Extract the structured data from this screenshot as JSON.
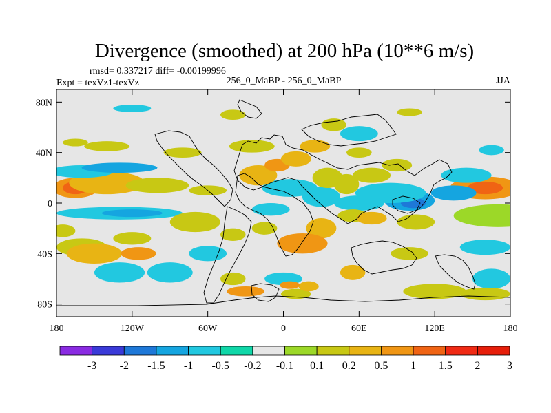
{
  "chart_data": {
    "type": "heatmap",
    "title": "Divergence (smoothed) at 200 hPa (10**6 m/s)",
    "stats_line": "rmsd= 0.337217 diff= -0.00199996",
    "experiment_line": "Expt = texVz1-texVz",
    "case_label": "256_0_MaBP - 256_0_MaBP",
    "season": "JJA",
    "x_axis": {
      "range": [
        -180,
        180
      ],
      "ticks": [
        -180,
        -120,
        -60,
        0,
        60,
        120,
        180
      ],
      "tick_labels": [
        "180",
        "120W",
        "60W",
        "0",
        "60E",
        "120E",
        "180"
      ]
    },
    "y_axis": {
      "range": [
        -90,
        90
      ],
      "ticks": [
        80,
        40,
        0,
        -40,
        -80
      ],
      "tick_labels": [
        "80N",
        "40N",
        "0",
        "40S",
        "80S"
      ]
    },
    "colorbar": {
      "levels": [
        "-3",
        "-2",
        "-1.5",
        "-1",
        "-0.5",
        "-0.2",
        "-0.1",
        "0.1",
        "0.2",
        "0.5",
        "1",
        "1.5",
        "2",
        "3"
      ],
      "colors": [
        "#8a2be2",
        "#3a3ad8",
        "#1e78d8",
        "#15a5e0",
        "#22c8e0",
        "#10d7a8",
        "#e6e6e6",
        "#9cd828",
        "#c8c814",
        "#e8b414",
        "#f09614",
        "#f06414",
        "#f02a14",
        "#e61e0a"
      ]
    },
    "background_value_color": "#e6e6e6",
    "features": [
      {
        "lon": 160,
        "lat": 12,
        "slon": 28,
        "slat": 9,
        "class": 10
      },
      {
        "lon": 160,
        "lat": 12,
        "slon": 14,
        "slat": 5,
        "class": 11
      },
      {
        "lon": -165,
        "lat": 12,
        "slon": 18,
        "slat": 8,
        "class": 10
      },
      {
        "lon": -165,
        "lat": 12,
        "slon": 10,
        "slat": 5,
        "class": 11
      },
      {
        "lon": -140,
        "lat": 16,
        "slon": 30,
        "slat": 9,
        "class": 9
      },
      {
        "lon": -100,
        "lat": 14,
        "slon": 25,
        "slat": 6,
        "class": 8
      },
      {
        "lon": -60,
        "lat": 10,
        "slon": 15,
        "slat": 4,
        "class": 8
      },
      {
        "lon": 170,
        "lat": -10,
        "slon": 35,
        "slat": 9,
        "class": 7
      },
      {
        "lon": -130,
        "lat": -8,
        "slon": 50,
        "slat": 5,
        "class": 4
      },
      {
        "lon": -120,
        "lat": -8,
        "slon": 24,
        "slat": 3,
        "class": 3
      },
      {
        "lon": -160,
        "lat": 25,
        "slon": 25,
        "slat": 5,
        "class": 4
      },
      {
        "lon": -130,
        "lat": 28,
        "slon": 30,
        "slat": 4,
        "class": 3
      },
      {
        "lon": 145,
        "lat": 22,
        "slon": 20,
        "slat": 6,
        "class": 4
      },
      {
        "lon": 135,
        "lat": 8,
        "slon": 18,
        "slat": 6,
        "class": 3
      },
      {
        "lon": 100,
        "lat": 2,
        "slon": 20,
        "slat": 8,
        "class": 3
      },
      {
        "lon": 103,
        "lat": 0,
        "slon": 10,
        "slat": 4,
        "class": 2
      },
      {
        "lon": 85,
        "lat": 8,
        "slon": 28,
        "slat": 8,
        "class": 4
      },
      {
        "lon": 60,
        "lat": 0,
        "slon": 20,
        "slat": 6,
        "class": 4
      },
      {
        "lon": 30,
        "lat": 5,
        "slon": 15,
        "slat": 8,
        "class": 4
      },
      {
        "lon": 5,
        "lat": 12,
        "slon": 22,
        "slat": 7,
        "class": 4
      },
      {
        "lon": -10,
        "lat": -5,
        "slon": 15,
        "slat": 5,
        "class": 4
      },
      {
        "lon": -20,
        "lat": 22,
        "slon": 15,
        "slat": 8,
        "class": 9
      },
      {
        "lon": -5,
        "lat": 30,
        "slon": 10,
        "slat": 5,
        "class": 10
      },
      {
        "lon": 10,
        "lat": 35,
        "slon": 12,
        "slat": 6,
        "class": 9
      },
      {
        "lon": 25,
        "lat": 45,
        "slon": 12,
        "slat": 5,
        "class": 9
      },
      {
        "lon": -25,
        "lat": 45,
        "slon": 18,
        "slat": 5,
        "class": 8
      },
      {
        "lon": 35,
        "lat": 20,
        "slon": 12,
        "slat": 8,
        "class": 8
      },
      {
        "lon": 50,
        "lat": 15,
        "slon": 10,
        "slat": 8,
        "class": 8
      },
      {
        "lon": 70,
        "lat": 22,
        "slon": 15,
        "slat": 6,
        "class": 8
      },
      {
        "lon": 90,
        "lat": 30,
        "slon": 12,
        "slat": 5,
        "class": 8
      },
      {
        "lon": 60,
        "lat": 40,
        "slon": 10,
        "slat": 4,
        "class": 8
      },
      {
        "lon": 105,
        "lat": -15,
        "slon": 15,
        "slat": 6,
        "class": 8
      },
      {
        "lon": 30,
        "lat": -20,
        "slon": 12,
        "slat": 8,
        "class": 9
      },
      {
        "lon": 15,
        "lat": -32,
        "slon": 20,
        "slat": 8,
        "class": 10
      },
      {
        "lon": -15,
        "lat": -20,
        "slon": 10,
        "slat": 5,
        "class": 8
      },
      {
        "lon": -40,
        "lat": -25,
        "slon": 10,
        "slat": 5,
        "class": 8
      },
      {
        "lon": -70,
        "lat": -15,
        "slon": 20,
        "slat": 8,
        "class": 8
      },
      {
        "lon": 55,
        "lat": -10,
        "slon": 12,
        "slat": 5,
        "class": 8
      },
      {
        "lon": 70,
        "lat": -12,
        "slon": 12,
        "slat": 5,
        "class": 9
      },
      {
        "lon": 55,
        "lat": -55,
        "slon": 10,
        "slat": 6,
        "class": 9
      },
      {
        "lon": 100,
        "lat": -40,
        "slon": 15,
        "slat": 5,
        "class": 8
      },
      {
        "lon": 160,
        "lat": -35,
        "slon": 20,
        "slat": 6,
        "class": 4
      },
      {
        "lon": 165,
        "lat": -60,
        "slon": 15,
        "slat": 8,
        "class": 4
      },
      {
        "lon": -160,
        "lat": -35,
        "slon": 20,
        "slat": 7,
        "class": 8
      },
      {
        "lon": -150,
        "lat": -40,
        "slon": 22,
        "slat": 8,
        "class": 9
      },
      {
        "lon": -115,
        "lat": -40,
        "slon": 14,
        "slat": 5,
        "class": 10
      },
      {
        "lon": -120,
        "lat": -28,
        "slon": 15,
        "slat": 5,
        "class": 8
      },
      {
        "lon": -175,
        "lat": -22,
        "slon": 10,
        "slat": 5,
        "class": 8
      },
      {
        "lon": -130,
        "lat": -55,
        "slon": 20,
        "slat": 8,
        "class": 4
      },
      {
        "lon": -90,
        "lat": -55,
        "slon": 18,
        "slat": 8,
        "class": 4
      },
      {
        "lon": -60,
        "lat": -40,
        "slon": 15,
        "slat": 6,
        "class": 4
      },
      {
        "lon": 0,
        "lat": -60,
        "slon": 15,
        "slat": 5,
        "class": 4
      },
      {
        "lon": -40,
        "lat": -60,
        "slon": 10,
        "slat": 5,
        "class": 8
      },
      {
        "lon": -30,
        "lat": -70,
        "slon": 15,
        "slat": 4,
        "class": 10
      },
      {
        "lon": 10,
        "lat": -72,
        "slon": 12,
        "slat": 4,
        "class": 8
      },
      {
        "lon": 20,
        "lat": -66,
        "slon": 8,
        "slat": 4,
        "class": 9
      },
      {
        "lon": 5,
        "lat": -65,
        "slon": 8,
        "slat": 3,
        "class": 10
      },
      {
        "lon": 120,
        "lat": -70,
        "slon": 25,
        "slat": 6,
        "class": 8
      },
      {
        "lon": 160,
        "lat": -72,
        "slon": 20,
        "slat": 5,
        "class": 8
      },
      {
        "lon": -140,
        "lat": 45,
        "slon": 18,
        "slat": 4,
        "class": 8
      },
      {
        "lon": -80,
        "lat": 40,
        "slon": 15,
        "slat": 4,
        "class": 8
      },
      {
        "lon": -165,
        "lat": 48,
        "slon": 10,
        "slat": 3,
        "class": 8
      },
      {
        "lon": 165,
        "lat": 42,
        "slon": 10,
        "slat": 4,
        "class": 4
      },
      {
        "lon": 60,
        "lat": 55,
        "slon": 15,
        "slat": 6,
        "class": 4
      },
      {
        "lon": 40,
        "lat": 62,
        "slon": 10,
        "slat": 5,
        "class": 8
      },
      {
        "lon": -120,
        "lat": 75,
        "slon": 15,
        "slat": 3,
        "class": 4
      },
      {
        "lon": -40,
        "lat": 70,
        "slon": 10,
        "slat": 4,
        "class": 8
      },
      {
        "lon": 100,
        "lat": 72,
        "slon": 10,
        "slat": 3,
        "class": 8
      }
    ]
  }
}
